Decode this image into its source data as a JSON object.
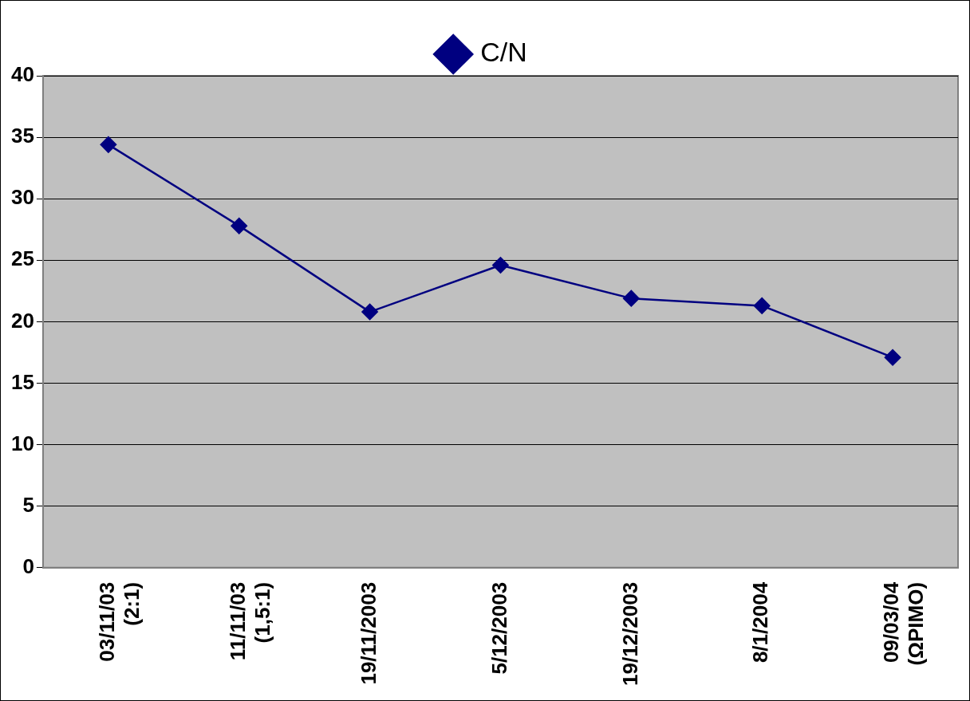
{
  "chart_data": {
    "type": "line",
    "categories": [
      "03/11/03\n(2:1)",
      "11/11/03\n(1,5:1)",
      "19/11/2003",
      "5/12/2003",
      "19/12/2003",
      "8/1/2004",
      "09/03/04\n(ΩΡΙΜΟ)"
    ],
    "series": [
      {
        "name": "C/N",
        "color": "#000080",
        "values": [
          34.4,
          27.8,
          20.8,
          24.6,
          21.9,
          21.3,
          17.1
        ]
      }
    ],
    "ylim": [
      0,
      40
    ],
    "yticks": [
      0,
      5,
      10,
      15,
      20,
      25,
      30,
      35,
      40
    ],
    "grid": "y",
    "legend": "top",
    "marker": "diamond",
    "line_style": "solid"
  }
}
